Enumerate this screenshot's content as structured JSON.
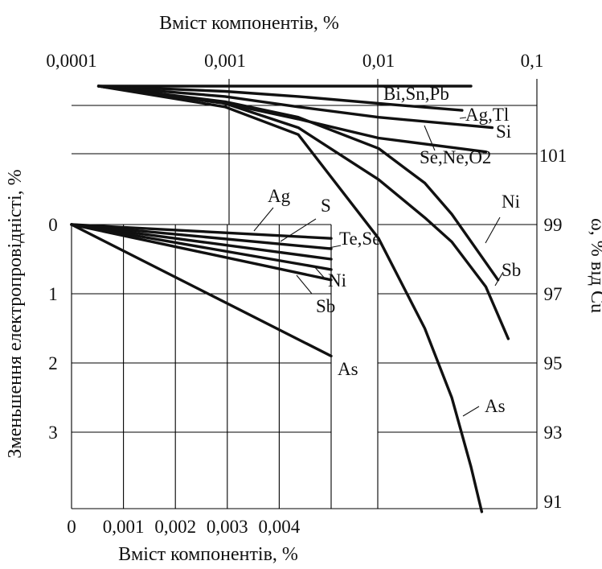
{
  "chart_data": [
    {
      "type": "line",
      "panel": "upper",
      "title": "",
      "xlabel": "Вміст компонентів, %",
      "ylabel": "ω, % від Cu",
      "xscale": "log",
      "xlim": [
        0.0001,
        0.1
      ],
      "ylim": [
        91,
        103
      ],
      "x_ticks": [
        "0,0001",
        "0,001",
        "0,01",
        "0,1"
      ],
      "y_ticks": [
        "101",
        "99",
        "97",
        "95",
        "93",
        "91"
      ],
      "series": [
        {
          "name": "Bi,Sn,Pb",
          "x": [
            0.00015,
            0.001,
            0.01,
            0.04
          ],
          "y": [
            103,
            103,
            103,
            103
          ]
        },
        {
          "name": "Ag,Tl",
          "x": [
            0.00015,
            0.001,
            0.003,
            0.01,
            0.035
          ],
          "y": [
            103,
            102.85,
            102.7,
            102.5,
            102.3
          ]
        },
        {
          "name": "Si",
          "x": [
            0.00015,
            0.001,
            0.003,
            0.01,
            0.055
          ],
          "y": [
            103,
            102.7,
            102.4,
            102.1,
            101.8
          ]
        },
        {
          "name": "Se,Ne,O2",
          "x": [
            0.00015,
            0.001,
            0.003,
            0.01,
            0.05
          ],
          "y": [
            103,
            102.5,
            102.05,
            101.5,
            101.1
          ]
        },
        {
          "name": "Ni",
          "x": [
            0.00015,
            0.001,
            0.003,
            0.01,
            0.02,
            0.03,
            0.06
          ],
          "y": [
            103,
            102.55,
            102.1,
            101.2,
            100.2,
            99.3,
            97.4
          ]
        },
        {
          "name": "Sb",
          "x": [
            0.00015,
            0.001,
            0.003,
            0.01,
            0.02,
            0.03,
            0.05,
            0.07
          ],
          "y": [
            103,
            102.5,
            101.8,
            100.3,
            99.2,
            98.5,
            97.2,
            95.7
          ]
        },
        {
          "name": "As",
          "x": [
            0.00015,
            0.001,
            0.003,
            0.01,
            0.02,
            0.03,
            0.04,
            0.047
          ],
          "y": [
            103,
            102.4,
            101.6,
            98.6,
            96,
            94,
            92,
            90.7
          ]
        }
      ]
    },
    {
      "type": "line",
      "panel": "lower",
      "title": "",
      "xlabel": "Вміст компонентів, %",
      "ylabel": "Зменьшення електропровідністі, %",
      "xlim": [
        0,
        0.006
      ],
      "ylim": [
        0,
        4.2
      ],
      "x_ticks": [
        "0",
        "0,001",
        "0,002",
        "0,003",
        "0,004"
      ],
      "y_ticks": [
        "0",
        "1",
        "2",
        "3"
      ],
      "series": [
        {
          "name": "Ag",
          "x": [
            0,
            0.005
          ],
          "y": [
            0,
            0.2
          ]
        },
        {
          "name": "S",
          "x": [
            0,
            0.005
          ],
          "y": [
            0,
            0.35
          ]
        },
        {
          "name": "Te,Se",
          "x": [
            0,
            0.005
          ],
          "y": [
            0,
            0.5
          ]
        },
        {
          "name": "Ni",
          "x": [
            0,
            0.005
          ],
          "y": [
            0,
            0.65
          ]
        },
        {
          "name": "Sb",
          "x": [
            0,
            0.005
          ],
          "y": [
            0,
            0.8
          ]
        },
        {
          "name": "As",
          "x": [
            0,
            0.005
          ],
          "y": [
            0,
            1.9
          ]
        }
      ]
    }
  ]
}
